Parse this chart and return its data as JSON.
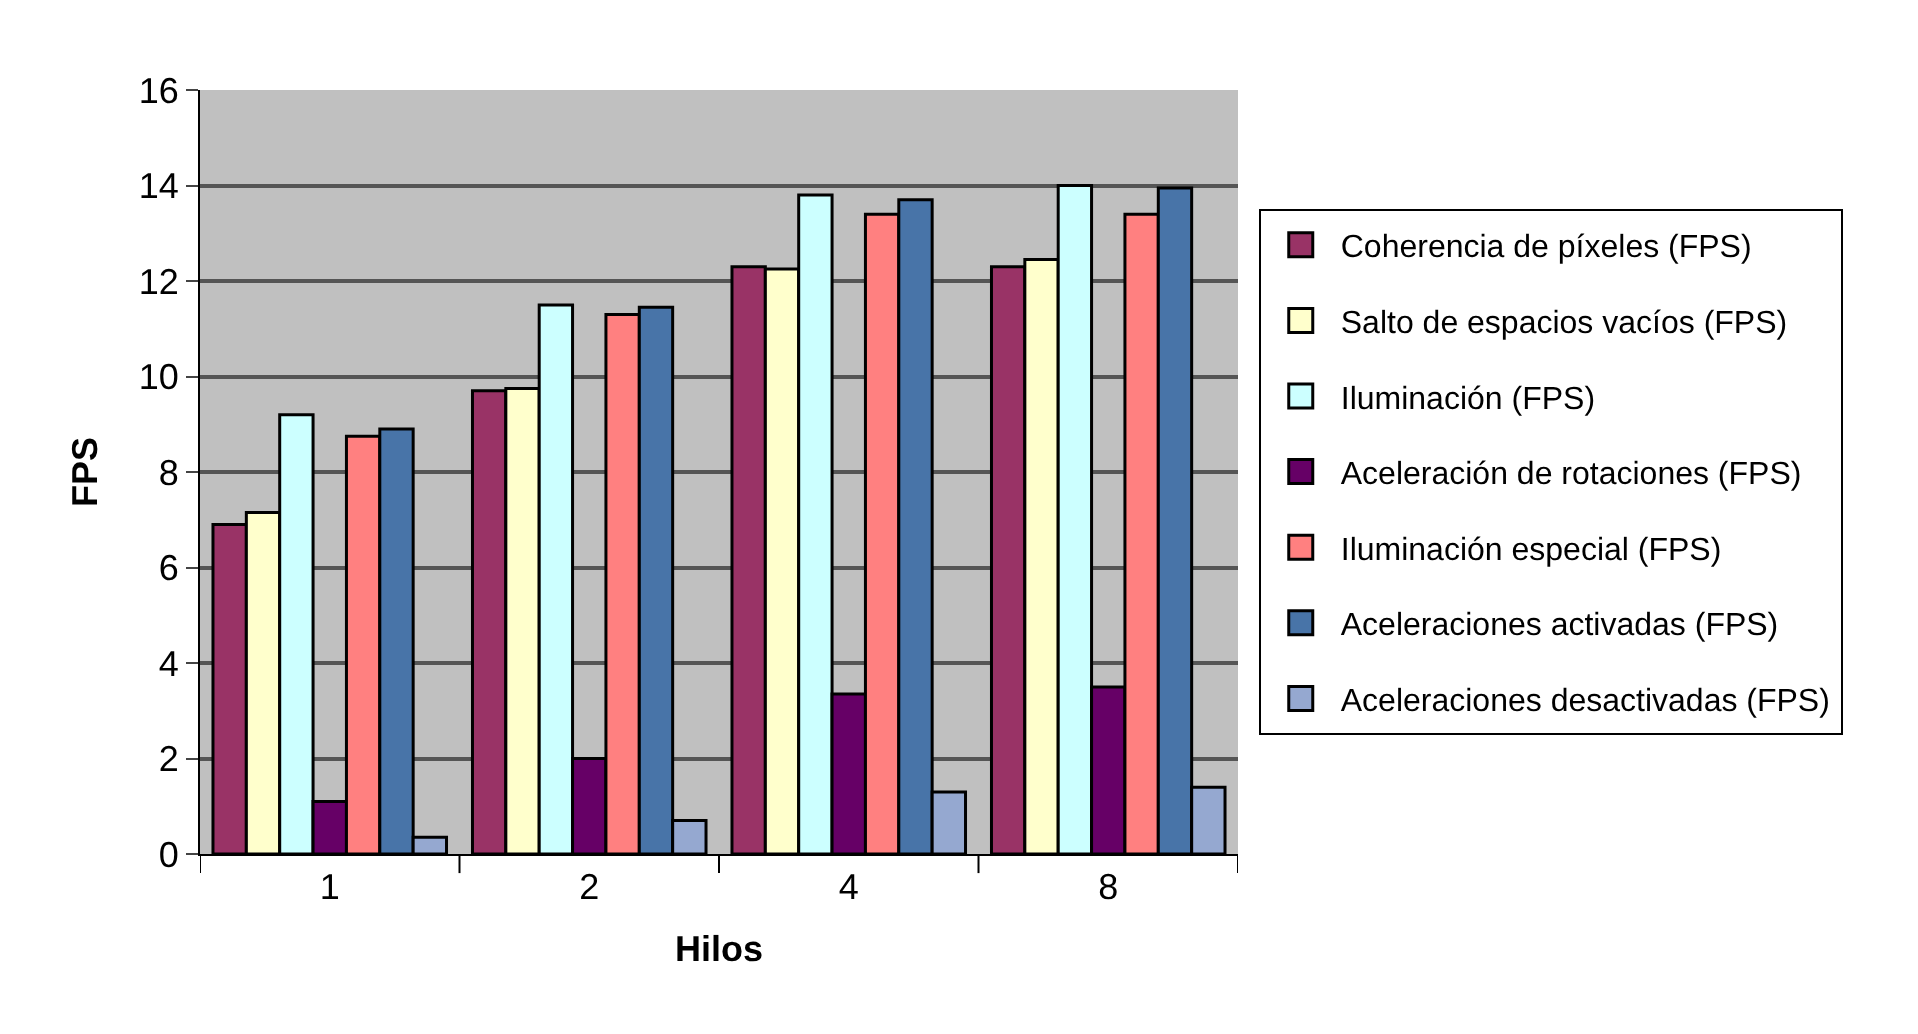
{
  "chart_data": {
    "type": "bar",
    "xlabel": "Hilos",
    "ylabel": "FPS",
    "categories": [
      "1",
      "2",
      "4",
      "8"
    ],
    "series": [
      {
        "name": "Coherencia de píxeles (FPS)",
        "color": "#993366",
        "values": [
          6.9,
          9.7,
          12.3,
          12.3
        ]
      },
      {
        "name": "Salto de espacios vacíos (FPS)",
        "color": "#ffffcc",
        "values": [
          7.15,
          9.75,
          12.25,
          12.45
        ]
      },
      {
        "name": "Iluminación (FPS)",
        "color": "#ccffff",
        "values": [
          9.2,
          11.5,
          13.8,
          14.0
        ]
      },
      {
        "name": "Aceleración de rotaciones (FPS)",
        "color": "#660066",
        "values": [
          1.1,
          2.0,
          3.35,
          3.5
        ]
      },
      {
        "name": "Iluminación especial (FPS)",
        "color": "#ff8080",
        "values": [
          8.75,
          11.3,
          13.4,
          13.4
        ]
      },
      {
        "name": "Aceleraciones activadas (FPS)",
        "color": "#4874a8",
        "values": [
          8.9,
          11.45,
          13.7,
          13.95
        ]
      },
      {
        "name": "Aceleraciones desactivadas (FPS)",
        "color": "#95a8d0",
        "values": [
          0.35,
          0.7,
          1.3,
          1.4
        ]
      }
    ],
    "ylim": [
      0,
      16
    ],
    "yticks": [
      0,
      2,
      4,
      6,
      8,
      10,
      12,
      14,
      16
    ],
    "grid": "y",
    "legend": "right"
  }
}
